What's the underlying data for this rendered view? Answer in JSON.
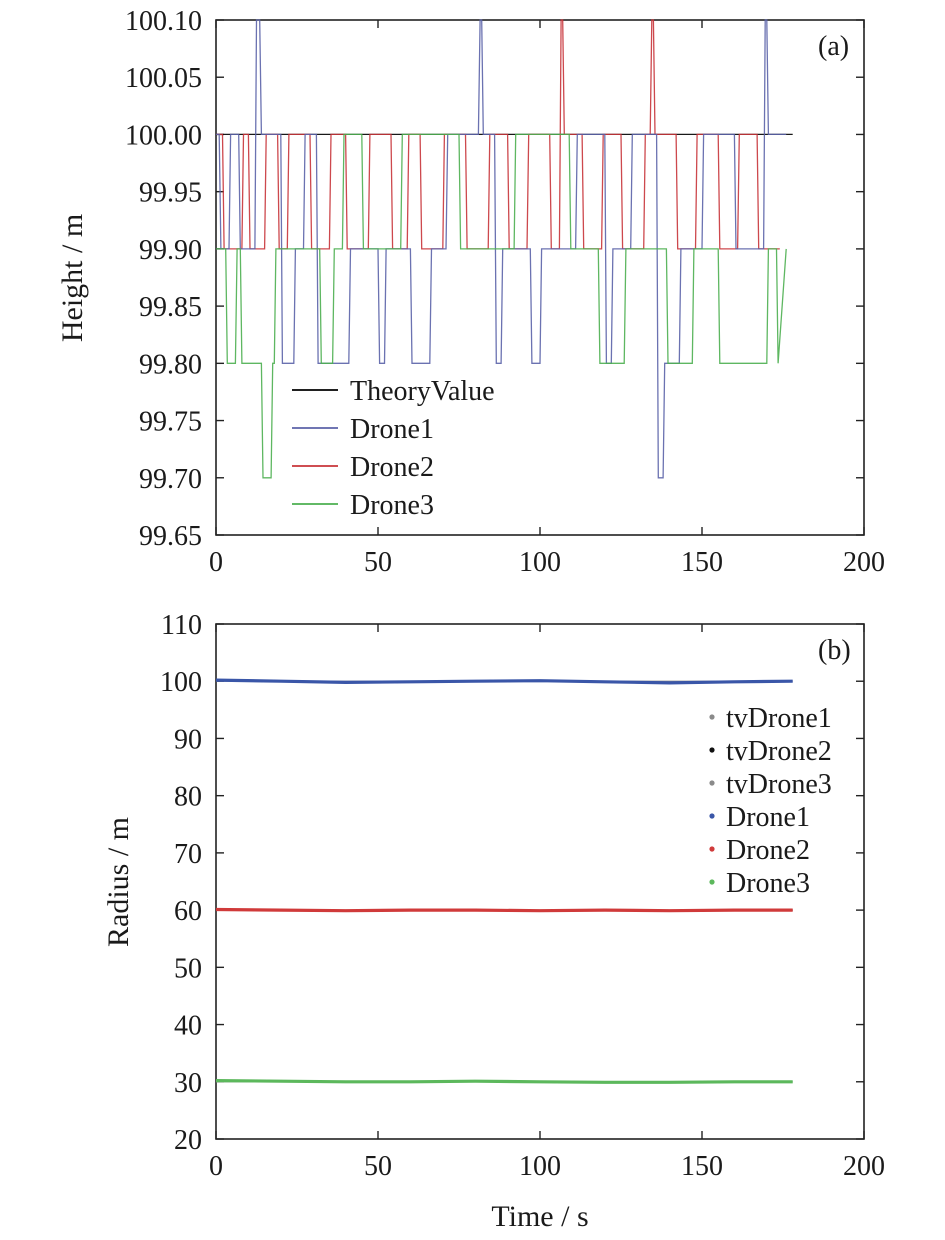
{
  "chart_data": [
    {
      "type": "line",
      "panel_label": "(a)",
      "xlabel": "",
      "ylabel": "Height / m",
      "xlim": [
        0,
        200
      ],
      "ylim": [
        99.65,
        100.1
      ],
      "x_ticks": [
        "0",
        "50",
        "100",
        "150",
        "200"
      ],
      "y_ticks": [
        "99.65",
        "99.70",
        "99.75",
        "99.80",
        "99.85",
        "99.90",
        "99.95",
        "100.00",
        "100.05",
        "100.10"
      ],
      "legend_position": "lower-left",
      "series": [
        {
          "name": "TheoryValue",
          "color": "#000000",
          "x": [
            0,
            178
          ],
          "y": [
            100.0,
            100.0
          ]
        },
        {
          "name": "Drone1",
          "color": "#5b63a8",
          "x": [
            0,
            1,
            1.5,
            4,
            4.5,
            7,
            7.5,
            12,
            12.5,
            13.5,
            14,
            20,
            20.5,
            24,
            24.5,
            27,
            27.5,
            31,
            31.5,
            41,
            41.5,
            50,
            50.5,
            52,
            52.5,
            60,
            60.5,
            66,
            66.5,
            71,
            71.5,
            81,
            81.5,
            82,
            82.5,
            86,
            86.5,
            88,
            88.5,
            97,
            97.5,
            100,
            100.5,
            111,
            111.5,
            120,
            120.5,
            122,
            122.5,
            128,
            128.5,
            136,
            136.5,
            138,
            138.5,
            143,
            143.5,
            150,
            150.5,
            160,
            160.5,
            169,
            169.5,
            170,
            170.5,
            176
          ],
          "y": [
            100.0,
            100.0,
            99.9,
            99.9,
            100.0,
            100.0,
            99.9,
            99.9,
            100.1,
            100.1,
            100.0,
            100.0,
            99.8,
            99.8,
            99.9,
            99.9,
            100.0,
            100.0,
            99.8,
            99.8,
            99.9,
            99.9,
            99.8,
            99.8,
            99.9,
            99.9,
            99.8,
            99.8,
            99.9,
            99.9,
            100.0,
            100.0,
            100.1,
            100.1,
            100.0,
            100.0,
            99.8,
            99.8,
            99.9,
            99.9,
            99.8,
            99.8,
            99.9,
            99.9,
            100.0,
            100.0,
            99.8,
            99.8,
            99.9,
            99.9,
            100.0,
            100.0,
            99.7,
            99.7,
            99.8,
            99.8,
            99.9,
            99.9,
            100.0,
            100.0,
            99.9,
            99.9,
            100.1,
            100.1,
            100.0,
            100.0
          ]
        },
        {
          "name": "Drone2",
          "color": "#c8343a",
          "x": [
            0,
            2,
            2.5,
            8,
            8.5,
            10,
            10.5,
            15,
            15.5,
            19,
            19.5,
            22,
            22.5,
            29,
            29.5,
            35,
            35.5,
            40,
            40.5,
            47,
            47.5,
            54,
            54.5,
            59,
            59.5,
            63,
            63.5,
            70,
            70.5,
            77,
            77.5,
            84,
            84.5,
            90,
            90.5,
            96,
            96.5,
            103,
            103.5,
            106,
            106.5,
            107,
            107.5,
            113,
            113.5,
            119,
            119.5,
            125,
            125.5,
            132,
            132.5,
            134,
            134.5,
            135,
            135.5,
            142,
            142.5,
            148,
            148.5,
            155,
            155.5,
            161,
            161.5,
            167,
            167.5,
            174
          ],
          "y": [
            100.0,
            100.0,
            99.9,
            99.9,
            100.0,
            100.0,
            99.9,
            99.9,
            100.0,
            100.0,
            99.9,
            99.9,
            100.0,
            100.0,
            99.9,
            99.9,
            100.0,
            100.0,
            99.9,
            99.9,
            100.0,
            100.0,
            99.9,
            99.9,
            100.0,
            100.0,
            99.9,
            99.9,
            100.0,
            100.0,
            99.9,
            99.9,
            100.0,
            100.0,
            99.9,
            99.9,
            100.0,
            100.0,
            99.9,
            99.9,
            100.1,
            100.1,
            100.0,
            100.0,
            99.9,
            99.9,
            100.0,
            100.0,
            99.9,
            99.9,
            100.0,
            100.0,
            100.1,
            100.1,
            100.0,
            100.0,
            99.9,
            99.9,
            100.0,
            100.0,
            99.9,
            99.9,
            100.0,
            100.0,
            99.9,
            99.9
          ]
        },
        {
          "name": "Drone3",
          "color": "#4caf50",
          "x": [
            0,
            3,
            3.5,
            6,
            6.5,
            7.5,
            8,
            14,
            14.5,
            17,
            17.5,
            18,
            18.5,
            32,
            32.5,
            36,
            36.5,
            39,
            39.5,
            45,
            45.5,
            57,
            57.5,
            75,
            75.5,
            92,
            92.5,
            109,
            109.5,
            118,
            118.5,
            126,
            126.5,
            139,
            139.5,
            147,
            147.5,
            155,
            155.5,
            170,
            170.5,
            173,
            173.5,
            176
          ],
          "y": [
            99.9,
            99.9,
            99.8,
            99.8,
            99.9,
            99.9,
            99.8,
            99.8,
            99.7,
            99.7,
            99.8,
            99.8,
            99.9,
            99.9,
            99.8,
            99.8,
            99.9,
            99.9,
            100.0,
            100.0,
            99.9,
            99.9,
            100.0,
            100.0,
            99.9,
            99.9,
            100.0,
            100.0,
            99.9,
            99.9,
            99.8,
            99.8,
            99.9,
            99.9,
            99.8,
            99.8,
            99.9,
            99.9,
            99.8,
            99.8,
            99.9,
            99.9,
            99.8,
            99.9
          ]
        }
      ]
    },
    {
      "type": "line",
      "panel_label": "(b)",
      "xlabel": "Time / s",
      "ylabel": "Radius / m",
      "xlim": [
        0,
        200
      ],
      "ylim": [
        20,
        110
      ],
      "x_ticks": [
        "0",
        "50",
        "100",
        "150",
        "200"
      ],
      "y_ticks": [
        "20",
        "30",
        "40",
        "50",
        "60",
        "70",
        "80",
        "90",
        "100",
        "110"
      ],
      "legend_position": "right",
      "series": [
        {
          "name": "tvDrone1",
          "color": "#8a8a8a",
          "x": [
            0,
            178
          ],
          "y": [
            100,
            100
          ]
        },
        {
          "name": "tvDrone2",
          "color": "#111111",
          "x": [
            0,
            178
          ],
          "y": [
            60,
            60
          ]
        },
        {
          "name": "tvDrone3",
          "color": "#8a8a8a",
          "x": [
            0,
            178
          ],
          "y": [
            30,
            30
          ]
        },
        {
          "name": "Drone1",
          "color": "#3a56a8",
          "x": [
            0,
            20,
            40,
            60,
            80,
            100,
            120,
            140,
            160,
            178
          ],
          "y": [
            100.2,
            100.0,
            99.8,
            99.9,
            100.0,
            100.1,
            99.9,
            99.7,
            99.9,
            100.0
          ]
        },
        {
          "name": "Drone2",
          "color": "#d03a3a",
          "x": [
            0,
            20,
            40,
            60,
            80,
            100,
            120,
            140,
            160,
            178
          ],
          "y": [
            60.1,
            60.0,
            59.9,
            60.0,
            60.0,
            59.9,
            60.0,
            59.9,
            60.0,
            60.0
          ]
        },
        {
          "name": "Drone3",
          "color": "#5cb85c",
          "x": [
            0,
            20,
            40,
            60,
            80,
            100,
            120,
            140,
            160,
            178
          ],
          "y": [
            30.2,
            30.1,
            30.0,
            30.0,
            30.1,
            30.0,
            29.9,
            29.9,
            30.0,
            30.0
          ]
        }
      ]
    }
  ]
}
